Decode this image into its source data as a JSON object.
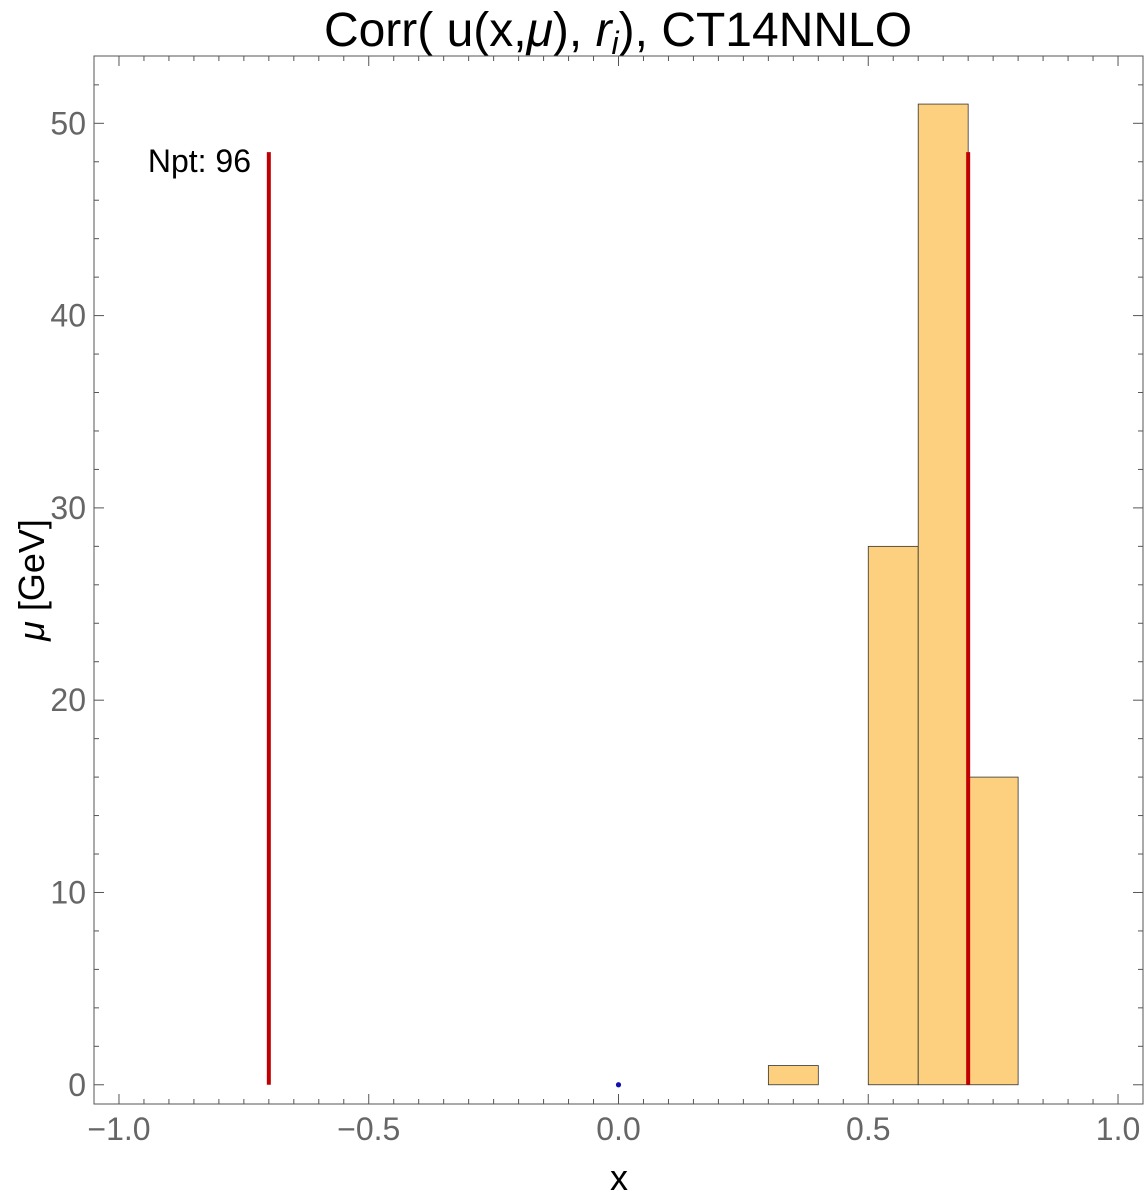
{
  "chart_data": {
    "type": "bar",
    "title_main": "Corr( u(x,",
    "title_mu": "μ",
    "title_mid": "), ",
    "title_r": "r",
    "title_sub": "i",
    "title_end": "), CT14NNLO",
    "xlabel": "x",
    "ylabel_mu": "μ",
    "ylabel_rest": " [GeV]",
    "xlim": [
      -1.05,
      1.05
    ],
    "ylim": [
      -1,
      53.5
    ],
    "xticks": [
      -1.0,
      -0.5,
      0.0,
      0.5,
      1.0
    ],
    "xtick_labels": [
      "−1.0",
      "−0.5",
      "0.0",
      "0.5",
      "1.0"
    ],
    "yticks": [
      0,
      10,
      20,
      30,
      40,
      50
    ],
    "ytick_labels": [
      "0",
      "10",
      "20",
      "30",
      "40",
      "50"
    ],
    "bin_width": 0.1,
    "bins": [
      {
        "x_start": 0.3,
        "count": 1
      },
      {
        "x_start": 0.5,
        "count": 28
      },
      {
        "x_start": 0.6,
        "count": 51
      },
      {
        "x_start": 0.7,
        "count": 16
      }
    ],
    "vertical_lines": [
      {
        "x": -0.7,
        "y_from": 0,
        "y_to": 48.5
      },
      {
        "x": 0.7,
        "y_from": 0,
        "y_to": 48.5
      }
    ],
    "points": [
      {
        "x": 0.0,
        "y": 0.0
      }
    ],
    "annotation": "Npt: 96",
    "colors": {
      "bar_fill": "#FDD080",
      "bar_stroke": "#333333",
      "line": "#C00000",
      "point": "#1010B0",
      "frame": "#555555",
      "tick_text": "#666666"
    }
  }
}
